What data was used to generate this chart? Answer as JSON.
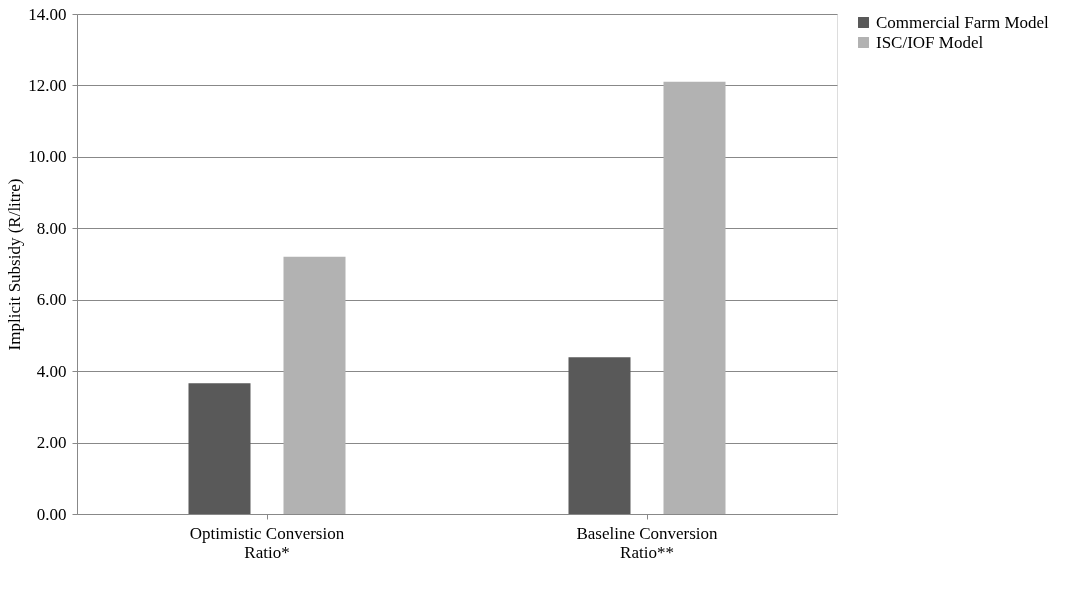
{
  "chart_data": {
    "type": "bar",
    "ylabel": "Implicit Subsidy (R/litre)",
    "categories": [
      "Optimistic Conversion Ratio*",
      "Baseline Conversion Ratio**"
    ],
    "series": [
      {
        "name": "Commercial Farm Model",
        "color": "#595959",
        "values": [
          3.66,
          4.39
        ]
      },
      {
        "name": "ISC/IOF Model",
        "color": "#b2b2b2",
        "values": [
          7.2,
          12.1
        ]
      }
    ],
    "ylim": [
      0,
      14
    ],
    "yticks": [
      {
        "value": 0,
        "label": "0.00"
      },
      {
        "value": 2,
        "label": "2.00"
      },
      {
        "value": 4,
        "label": "4.00"
      },
      {
        "value": 6,
        "label": "6.00"
      },
      {
        "value": 8,
        "label": "8.00"
      },
      {
        "value": 10,
        "label": "10.00"
      },
      {
        "value": 12,
        "label": "12.00"
      },
      {
        "value": 14,
        "label": "14.00"
      }
    ],
    "grid": "y",
    "legend": "right"
  }
}
